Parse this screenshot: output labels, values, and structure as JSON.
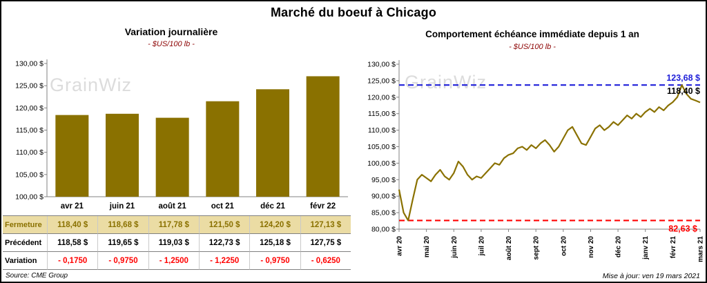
{
  "page": {
    "title": "Marché du boeuf à Chicago",
    "source": "Source: CME Group",
    "updated": "Mise à jour: ven 19 mars 2021",
    "watermark": "GrainWiz"
  },
  "colors": {
    "gold": "#8A7100",
    "tan_row_bg": "#EBDCA4",
    "variation_red": "#FF0000",
    "high_blue": "#1F1FD9",
    "low_red": "#FF0000",
    "subtitle_maroon": "#8B0000",
    "axis_gray": "#808080",
    "watermark_gray": "#DCDCDC"
  },
  "chart_data": [
    {
      "id": "daily-variation-bar",
      "type": "bar",
      "title": "Variation journalière",
      "subtitle": "- $US/100 lb -",
      "categories": [
        "avr 21",
        "juin 21",
        "août 21",
        "oct 21",
        "déc 21",
        "févr 22"
      ],
      "values": [
        118.4,
        118.68,
        117.78,
        121.5,
        124.2,
        127.13
      ],
      "ylim": [
        100,
        130
      ],
      "ytick_step": 5,
      "ytick_labels": [
        "100,00 $",
        "105,00 $",
        "110,00 $",
        "115,00 $",
        "120,00 $",
        "125,00 $",
        "130,00 $"
      ],
      "bar_color": "#8A7100",
      "grid": false,
      "legend": false
    },
    {
      "id": "immediate-maturity-line",
      "type": "line",
      "title": "Comportement échéance immédiate depuis 1 an",
      "subtitle": "- $US/100 lb -",
      "x_labels": [
        "avr 20",
        "mai 20",
        "juin 20",
        "juil 20",
        "août 20",
        "sept 20",
        "oct 20",
        "nov 20",
        "déc 20",
        "janv 21",
        "févr 21",
        "mars 21"
      ],
      "ylim": [
        80,
        130
      ],
      "ytick_step": 5,
      "ytick_labels": [
        "80,00 $",
        "85,00 $",
        "90,00 $",
        "95,00 $",
        "100,00 $",
        "105,00 $",
        "110,00 $",
        "115,00 $",
        "120,00 $",
        "125,00 $",
        "130,00 $"
      ],
      "line_color": "#8A7100",
      "grid": false,
      "legend": false,
      "high_line": {
        "value": 123.68,
        "label": "123,68 $",
        "color": "#1F1FD9"
      },
      "low_line": {
        "value": 82.63,
        "label": "82,63 $",
        "color": "#FF0000"
      },
      "last_label": {
        "value": 118.4,
        "label": "118,40 $",
        "color": "#000000"
      },
      "values": [
        92.0,
        85.0,
        82.63,
        89.0,
        95.0,
        96.5,
        95.5,
        94.5,
        96.5,
        98.0,
        96.0,
        95.0,
        97.0,
        100.5,
        99.0,
        96.5,
        95.0,
        96.0,
        95.5,
        97.0,
        98.5,
        100.0,
        99.5,
        101.5,
        102.5,
        103.0,
        104.5,
        105.0,
        104.0,
        105.5,
        104.5,
        106.0,
        107.0,
        105.5,
        103.5,
        105.0,
        107.5,
        110.0,
        111.0,
        108.5,
        106.0,
        105.5,
        108.0,
        110.5,
        111.5,
        110.0,
        111.0,
        112.5,
        111.5,
        113.0,
        114.5,
        113.5,
        115.0,
        114.0,
        115.5,
        116.5,
        115.5,
        117.0,
        116.0,
        117.5,
        118.5,
        120.0,
        123.68,
        121.0,
        119.5,
        119.0,
        118.4
      ]
    }
  ],
  "table": {
    "rows": [
      {
        "label": "Fermeture",
        "values": [
          "118,40 $",
          "118,68 $",
          "117,78 $",
          "121,50 $",
          "124,20 $",
          "127,13 $"
        ]
      },
      {
        "label": "Précédent",
        "values": [
          "118,58 $",
          "119,65 $",
          "119,03 $",
          "122,73 $",
          "125,18 $",
          "127,75 $"
        ]
      },
      {
        "label": "Variation",
        "values": [
          "- 0,1750",
          "- 0,9750",
          "- 1,2500",
          "- 1,2250",
          "- 0,9750",
          "- 0,6250"
        ]
      }
    ]
  }
}
